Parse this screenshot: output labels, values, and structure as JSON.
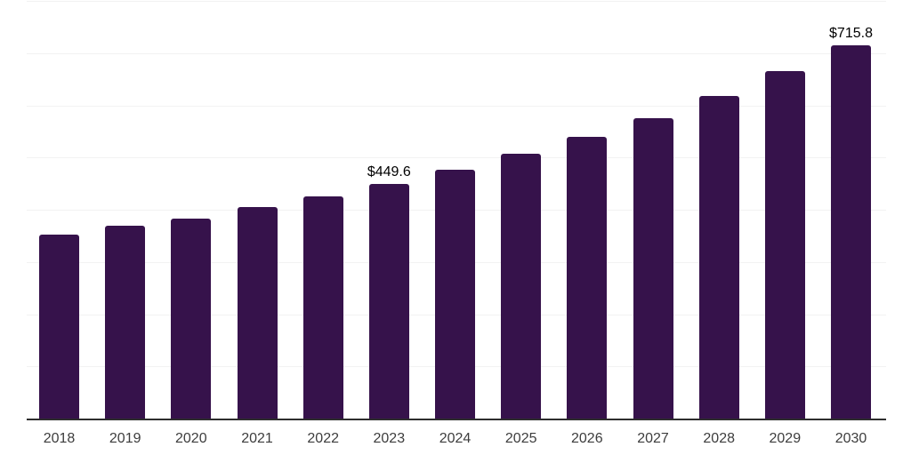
{
  "chart_data": {
    "type": "bar",
    "title": "",
    "xlabel": "",
    "ylabel": "",
    "categories": [
      "2018",
      "2019",
      "2020",
      "2021",
      "2022",
      "2023",
      "2024",
      "2025",
      "2026",
      "2027",
      "2028",
      "2029",
      "2030"
    ],
    "values": [
      352,
      369,
      383,
      406,
      425,
      449.6,
      477,
      507,
      540,
      576,
      618,
      666,
      715.8
    ],
    "data_labels": [
      {
        "category": "2023",
        "text": "$449.6"
      },
      {
        "category": "2030",
        "text": "$715.8"
      }
    ],
    "ylim": [
      0,
      800
    ],
    "gridline_step": 100,
    "grid": true,
    "y_axis_tick_labels_visible": false,
    "legend_position": "none",
    "unit_prefix": "$"
  },
  "colors": {
    "bar_fill": "#36124B",
    "axis_line": "#2e2e2e",
    "gridline": "#f2f2f2",
    "tick_label": "#3d3d3d",
    "data_label": "#000000",
    "background": "#ffffff"
  }
}
